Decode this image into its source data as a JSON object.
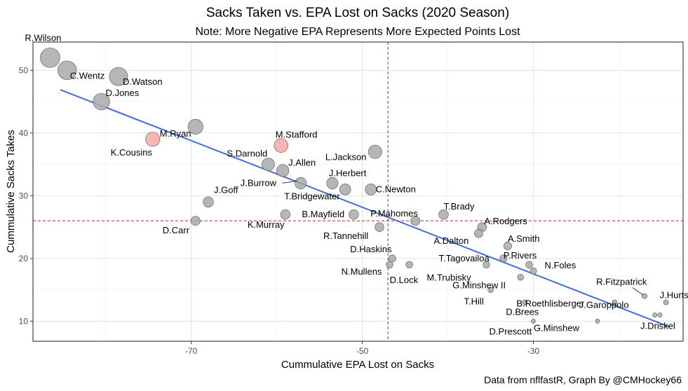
{
  "chart_data": {
    "type": "scatter",
    "title": "Sacks Taken vs. EPA Lost on Sacks (2020 Season)",
    "subtitle": "Note: More Negative EPA Represents More Expected Points Lost",
    "xlabel": "Cummulative EPA Lost on Sacks",
    "ylabel": "Cummulative Sacks Takes",
    "caption": "Data from nflfastR, Graph By @CMHockey66",
    "xlim": [
      -88.5,
      -12.5
    ],
    "ylim": [
      6.8,
      54.5
    ],
    "x_ticks": [
      -70,
      -50,
      -30
    ],
    "y_ticks": [
      10,
      20,
      30,
      40,
      50
    ],
    "grid": true,
    "mean_x": -47.0,
    "mean_y": 26.0,
    "trend_line": {
      "x": [
        -85.3,
        -14.1
      ],
      "y": [
        46.9,
        9.1
      ]
    },
    "colors": {
      "normal": "#a9a9a9",
      "highlight": "#f8a6a6",
      "trend": "#3f6fd6",
      "mean_line": "#a52a2a"
    },
    "points": [
      {
        "name": "R.Wilson",
        "x": -86.5,
        "y": 52,
        "highlight": false
      },
      {
        "name": "C.Wentz",
        "x": -84.5,
        "y": 50,
        "highlight": false
      },
      {
        "name": "D.Watson",
        "x": -78.5,
        "y": 49,
        "highlight": false
      },
      {
        "name": "D.Jones",
        "x": -80.5,
        "y": 45,
        "highlight": false
      },
      {
        "name": "M.Ryan",
        "x": -69.5,
        "y": 41,
        "highlight": false
      },
      {
        "name": "K.Cousins",
        "x": -74.5,
        "y": 39,
        "highlight": true
      },
      {
        "name": "M.Stafford",
        "x": -59.5,
        "y": 38,
        "highlight": true
      },
      {
        "name": "L.Jackson",
        "x": -48.5,
        "y": 37,
        "highlight": false
      },
      {
        "name": "S.Darnold",
        "x": -61.0,
        "y": 35,
        "highlight": false
      },
      {
        "name": "J.Allen",
        "x": -59.3,
        "y": 34,
        "highlight": false
      },
      {
        "name": "J.Burrow",
        "x": -57.2,
        "y": 32,
        "highlight": false
      },
      {
        "name": "J.Herbert",
        "x": -53.5,
        "y": 32,
        "highlight": false
      },
      {
        "name": "C.Newton",
        "x": -49.0,
        "y": 31,
        "highlight": false
      },
      {
        "name": "T.Bridgewater",
        "x": -52.0,
        "y": 31,
        "highlight": false
      },
      {
        "name": "J.Goff",
        "x": -68.0,
        "y": 29,
        "highlight": false
      },
      {
        "name": "T.Brady",
        "x": -40.5,
        "y": 27,
        "highlight": false
      },
      {
        "name": "B.Mayfield",
        "x": -51.0,
        "y": 27,
        "highlight": false
      },
      {
        "name": "K.Murray",
        "x": -59.0,
        "y": 27,
        "highlight": false
      },
      {
        "name": "P.Mahomes",
        "x": -43.8,
        "y": 26,
        "highlight": false
      },
      {
        "name": "D.Carr",
        "x": -69.5,
        "y": 26,
        "highlight": false
      },
      {
        "name": "A.Rodgers",
        "x": -36.0,
        "y": 25,
        "highlight": false
      },
      {
        "name": "R.Tannehill",
        "x": -48.0,
        "y": 25,
        "highlight": false
      },
      {
        "name": "A.Dalton",
        "x": -36.4,
        "y": 24,
        "highlight": false
      },
      {
        "name": "A.Smith",
        "x": -33.0,
        "y": 22,
        "highlight": false
      },
      {
        "name": "P.Rivers",
        "x": -33.5,
        "y": 20,
        "highlight": false
      },
      {
        "name": "D.Haskins",
        "x": -46.5,
        "y": 20,
        "highlight": false
      },
      {
        "name": "T.Tagovailoa",
        "x": -35.5,
        "y": 19,
        "highlight": false
      },
      {
        "name": "N.Foles",
        "x": -30.5,
        "y": 19,
        "highlight": false
      },
      {
        "name": "D.Lock",
        "x": -44.5,
        "y": 19,
        "highlight": false
      },
      {
        "name": "N.Mullens",
        "x": -46.8,
        "y": 19,
        "highlight": false
      },
      {
        "name": "M.Trubisky",
        "x": -30.0,
        "y": 18,
        "highlight": false
      },
      {
        "name": "G.Minshew II",
        "x": -31.5,
        "y": 17,
        "highlight": false
      },
      {
        "name": "T.Hill",
        "x": -35.0,
        "y": 15,
        "highlight": false
      },
      {
        "name": "R.Fitzpatrick",
        "x": -17.0,
        "y": 14,
        "highlight": false
      },
      {
        "name": "B.Roethlisberger",
        "x": -20.5,
        "y": 13,
        "highlight": false
      },
      {
        "name": "J.Hurts",
        "x": -14.5,
        "y": 13,
        "highlight": false
      },
      {
        "name": "D.Brees",
        "x": -31.0,
        "y": 13,
        "highlight": false
      },
      {
        "name": "J.Garoppolo",
        "x": -15.8,
        "y": 11,
        "highlight": false
      },
      {
        "name": "J.Driskel",
        "x": -15.2,
        "y": 11,
        "highlight": false
      },
      {
        "name": "D.Prescott",
        "x": -30.0,
        "y": 10,
        "highlight": false
      },
      {
        "name": "G.Minshew",
        "x": -22.5,
        "y": 10,
        "highlight": false
      }
    ]
  }
}
